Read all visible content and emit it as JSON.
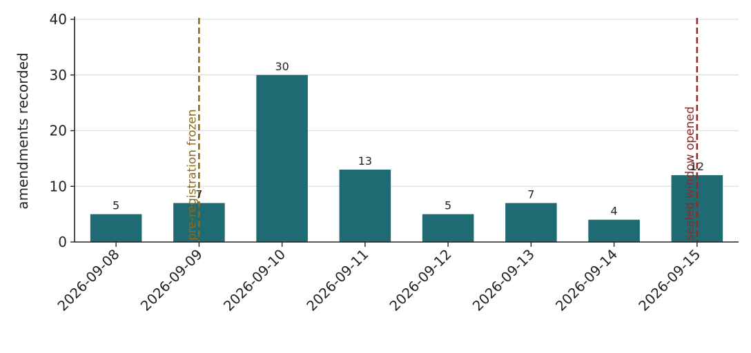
{
  "chart_data": {
    "type": "bar",
    "categories": [
      "2026-09-08",
      "2026-09-09",
      "2026-09-10",
      "2026-09-11",
      "2026-09-12",
      "2026-09-13",
      "2026-09-14",
      "2026-09-15"
    ],
    "values": [
      5,
      7,
      30,
      13,
      5,
      7,
      4,
      12
    ],
    "xlabel": "",
    "ylabel": "amendments recorded",
    "ylim": [
      0,
      40
    ],
    "yticks": [
      0,
      10,
      20,
      30,
      40
    ],
    "grid": "horizontal",
    "bar_color": "#1f6b73",
    "annotations": [
      {
        "category": "2026-09-09",
        "label": "pre-registration frozen",
        "color": "#8a6a1f",
        "style": "dashed"
      },
      {
        "category": "2026-09-15",
        "label": "sealed window opened",
        "color": "#8b2b2b",
        "style": "dashed"
      }
    ]
  }
}
